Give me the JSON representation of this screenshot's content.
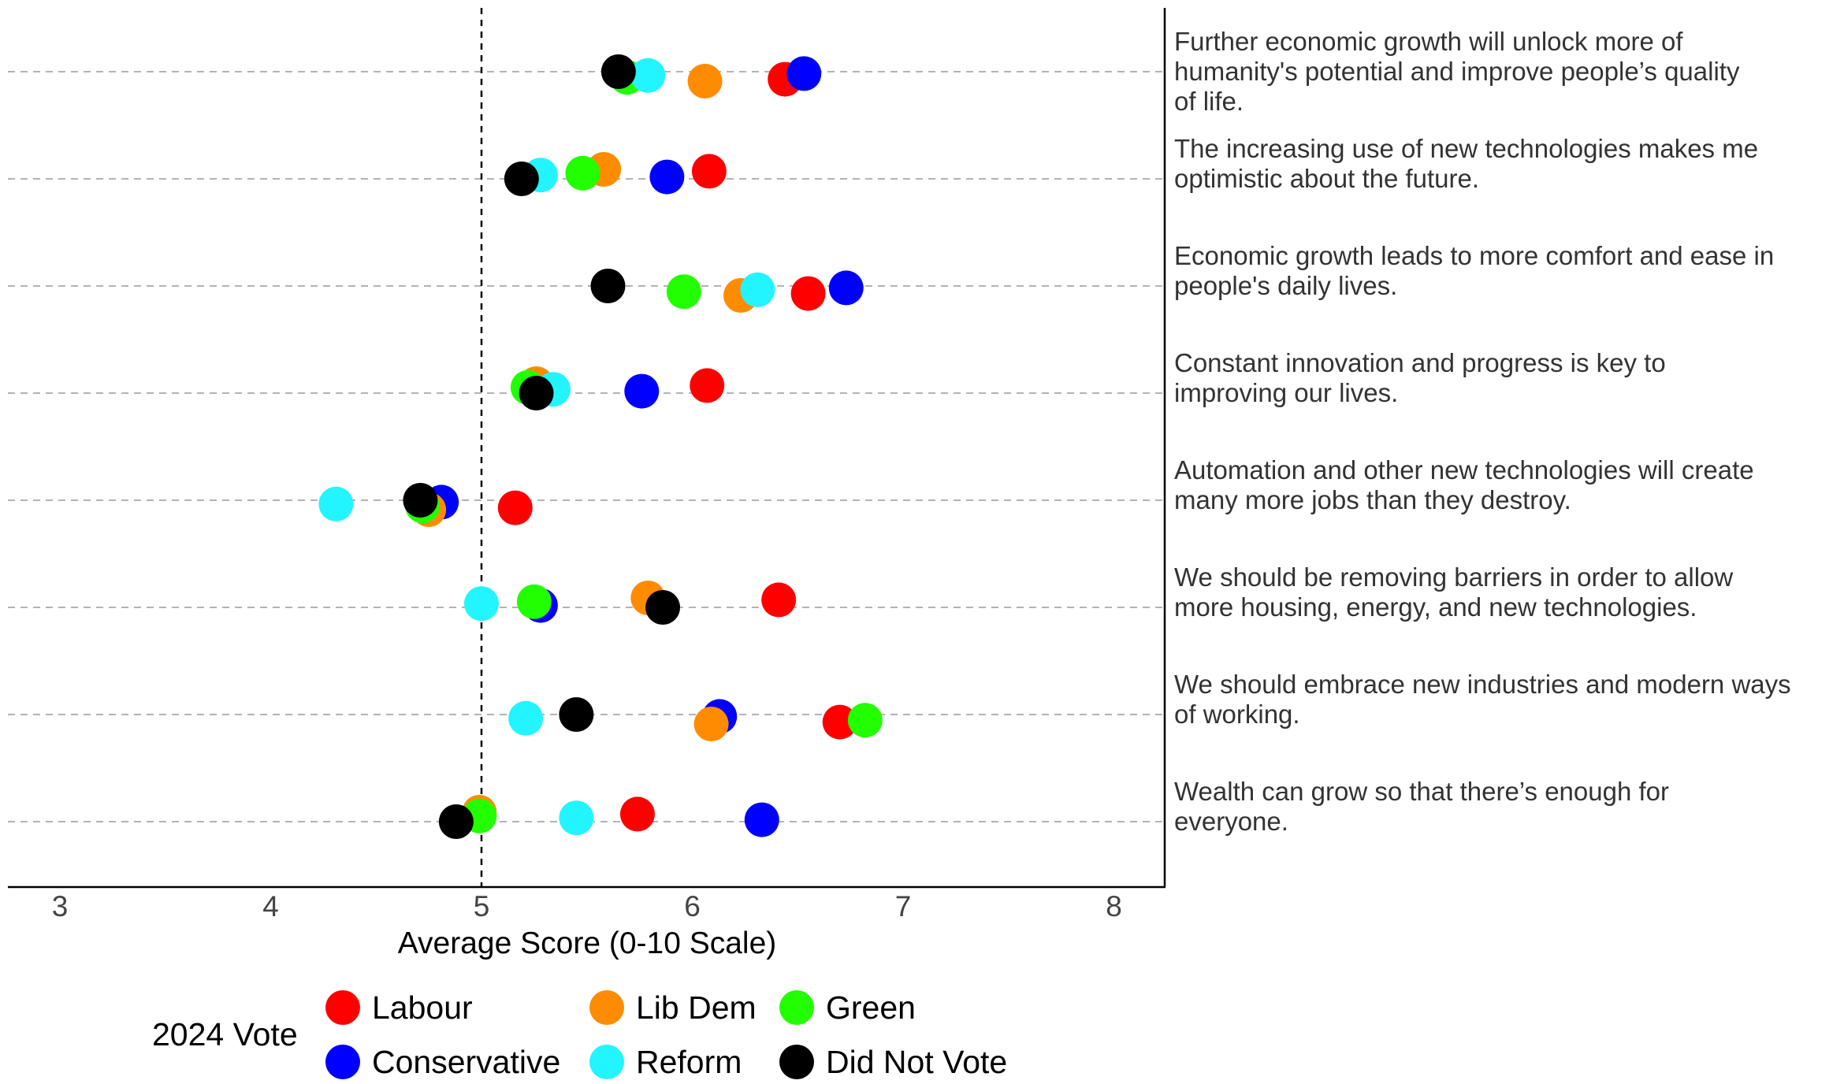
{
  "chart_data": {
    "type": "scatter",
    "xlabel": "Average Score (0-10 Scale)",
    "xlim": [
      2.75,
      8.25
    ],
    "x_ticks": [
      3,
      4,
      5,
      6,
      7,
      8
    ],
    "reference_line": 5,
    "grid": "horizontal dashed",
    "statements": [
      "Further economic growth will unlock more of humanity's potential and improve people’s quality of life.",
      "The increasing use of new technologies makes me optimistic about the future.",
      "Economic growth leads to more comfort and ease in people's daily lives.",
      "Constant innovation and progress is key to improving our lives.",
      "Automation and other new technologies will create many more jobs than they destroy.",
      "We should be removing barriers in order to allow more housing, energy, and new technologies.",
      "We should embrace new industries and modern ways of working.",
      "Wealth can grow so that there’s enough for everyone."
    ],
    "statement_lines": [
      [
        "Further economic growth will unlock more of",
        "humanity's potential and improve people’s quality",
        "of life."
      ],
      [
        "The increasing use of new technologies makes me",
        "optimistic about the future."
      ],
      [
        "Economic growth leads to more comfort and ease in",
        "people's daily lives."
      ],
      [
        "Constant innovation and progress is key to",
        "improving our lives."
      ],
      [
        "Automation and other new technologies will create",
        "many more jobs than they destroy."
      ],
      [
        "We should be removing barriers in order to allow",
        "more housing, energy, and new technologies."
      ],
      [
        "We should embrace new industries and modern ways",
        "of working."
      ],
      [
        "Wealth can grow so that there’s enough for",
        "everyone."
      ]
    ],
    "series": [
      {
        "name": "Labour",
        "color": "#FF0000",
        "values": [
          6.44,
          6.08,
          6.55,
          6.07,
          5.16,
          6.41,
          6.7,
          5.74
        ]
      },
      {
        "name": "Conservative",
        "color": "#0000FF",
        "values": [
          6.53,
          5.88,
          6.73,
          5.76,
          4.81,
          5.28,
          6.13,
          6.33
        ]
      },
      {
        "name": "Lib Dem",
        "color": "#FF8C00",
        "values": [
          6.06,
          5.58,
          6.23,
          5.26,
          4.75,
          5.79,
          6.09,
          4.99
        ]
      },
      {
        "name": "Green",
        "color": "#22FF00",
        "values": [
          5.69,
          5.48,
          5.96,
          5.22,
          4.72,
          5.25,
          6.82,
          4.99
        ]
      },
      {
        "name": "Reform",
        "color": "#22F5FF",
        "values": [
          5.79,
          5.28,
          6.31,
          5.34,
          4.31,
          5.0,
          5.21,
          5.45
        ]
      },
      {
        "name": "Did Not Vote",
        "color": "#000000",
        "values": [
          5.65,
          5.19,
          5.6,
          5.26,
          4.71,
          5.86,
          5.45,
          4.88
        ]
      }
    ],
    "legend": {
      "title": "2024 Vote",
      "placement": "bottom-left",
      "order": [
        "Labour",
        "Lib Dem",
        "Green",
        "Conservative",
        "Reform",
        "Did Not Vote"
      ]
    }
  }
}
